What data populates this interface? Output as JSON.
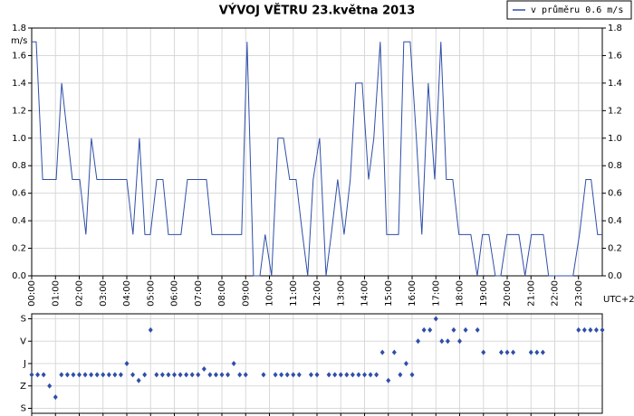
{
  "chart_data": [
    {
      "type": "line",
      "title": "VÝVOJ VĚTRU  23.května 2013",
      "ylabel": "m/s",
      "xlabel": "UTC+2",
      "legend": "top-right",
      "grid": true,
      "xlim": [
        0,
        24
      ],
      "xticks": [
        {
          "value": 0,
          "label": "00:00"
        },
        {
          "value": 1,
          "label": "01:00"
        },
        {
          "value": 2,
          "label": "02:00"
        },
        {
          "value": 3,
          "label": "03:00"
        },
        {
          "value": 4,
          "label": "04:00"
        },
        {
          "value": 5,
          "label": "05:00"
        },
        {
          "value": 6,
          "label": "06:00"
        },
        {
          "value": 7,
          "label": "07:00"
        },
        {
          "value": 8,
          "label": "08:00"
        },
        {
          "value": 9,
          "label": "09:00"
        },
        {
          "value": 10,
          "label": "10:00"
        },
        {
          "value": 11,
          "label": "11:00"
        },
        {
          "value": 12,
          "label": "12:00"
        },
        {
          "value": 13,
          "label": "13:00"
        },
        {
          "value": 14,
          "label": "14:00"
        },
        {
          "value": 15,
          "label": "15:00"
        },
        {
          "value": 16,
          "label": "16:00"
        },
        {
          "value": 17,
          "label": "17:00"
        },
        {
          "value": 18,
          "label": "18:00"
        },
        {
          "value": 19,
          "label": "19:00"
        },
        {
          "value": 20,
          "label": "20:00"
        },
        {
          "value": 21,
          "label": "21:00"
        },
        {
          "value": 22,
          "label": "22:00"
        },
        {
          "value": 23,
          "label": "23:00"
        }
      ],
      "ylim": [
        0,
        1.8
      ],
      "yticks": [
        {
          "value": 0,
          "label": "0.0"
        },
        0.2,
        0.4,
        0.6,
        0.8,
        {
          "value": 1,
          "label": "1.0"
        },
        1.2,
        1.4,
        1.6,
        1.8
      ],
      "x": [
        0,
        0.19,
        0.46,
        1.03,
        1.26,
        1.71,
        2.02,
        2.28,
        2.51,
        2.74,
        4.0,
        4.26,
        4.53,
        4.76,
        4.99,
        5.26,
        5.52,
        5.75,
        6.28,
        6.55,
        7.35,
        7.58,
        8.83,
        9.06,
        9.33,
        9.6,
        9.82,
        10.09,
        10.36,
        10.59,
        10.85,
        11.12,
        11.39,
        11.61,
        11.84,
        12.11,
        12.38,
        12.6,
        12.87,
        13.14,
        13.4,
        13.63,
        13.9,
        14.17,
        14.39,
        14.66,
        14.93,
        15.43,
        15.65,
        15.92,
        16.18,
        16.41,
        16.68,
        16.95,
        17.21,
        17.44,
        17.71,
        17.97,
        18.47,
        18.74,
        18.96,
        19.23,
        19.5,
        19.73,
        19.99,
        20.49,
        20.75,
        21.02,
        21.52,
        21.74,
        22.77,
        23.04,
        23.31,
        23.53,
        23.8,
        24.0
      ],
      "series": [
        {
          "name": "v průměru 0.6 m/s",
          "color": "#2f4fa8",
          "values": [
            1.7,
            1.7,
            0.7,
            0.7,
            1.4,
            0.7,
            0.7,
            0.3,
            1.0,
            0.7,
            0.7,
            0.3,
            1.0,
            0.3,
            0.3,
            0.7,
            0.7,
            0.3,
            0.3,
            0.7,
            0.7,
            0.3,
            0.3,
            1.7,
            0.0,
            0.0,
            0.3,
            0.0,
            1.0,
            1.0,
            0.7,
            0.7,
            0.3,
            0.0,
            0.7,
            1.0,
            0.0,
            0.3,
            0.7,
            0.3,
            0.7,
            1.4,
            1.4,
            0.7,
            1.0,
            1.7,
            0.3,
            0.3,
            1.7,
            1.7,
            1.0,
            0.3,
            1.4,
            0.7,
            1.7,
            0.7,
            0.7,
            0.3,
            0.3,
            0.0,
            0.3,
            0.3,
            0.0,
            0.0,
            0.3,
            0.3,
            0.0,
            0.3,
            0.3,
            0.0,
            0.0,
            0.3,
            0.7,
            0.7,
            0.3,
            0.3
          ]
        }
      ]
    },
    {
      "type": "scatter",
      "grid": true,
      "xlim": [
        0,
        24
      ],
      "xticks": [
        0,
        1,
        2,
        3,
        4,
        5,
        6,
        7,
        8,
        9,
        10,
        11,
        12,
        13,
        14,
        15,
        16,
        17,
        18,
        19,
        20,
        21,
        22,
        23
      ],
      "ylim": [
        -20,
        380
      ],
      "yticks": [
        {
          "value": 0,
          "label": "S"
        },
        {
          "value": 90,
          "label": "Z"
        },
        {
          "value": 180,
          "label": "J"
        },
        {
          "value": 270,
          "label": "V"
        },
        {
          "value": 360,
          "label": "S"
        }
      ],
      "x": [
        0,
        0.25,
        0.5,
        0.75,
        1.0,
        1.25,
        1.5,
        1.75,
        2.0,
        2.25,
        2.5,
        2.75,
        3.0,
        3.25,
        3.5,
        3.75,
        4.0,
        4.25,
        4.5,
        4.75,
        5.0,
        5.25,
        5.5,
        5.75,
        6.0,
        6.25,
        6.5,
        6.75,
        7.0,
        7.25,
        7.5,
        7.75,
        8.0,
        8.25,
        8.5,
        8.75,
        9.0,
        9.75,
        10.25,
        10.5,
        10.75,
        11.0,
        11.25,
        11.75,
        12.0,
        12.5,
        12.75,
        13.0,
        13.25,
        13.5,
        13.75,
        14.0,
        14.25,
        14.5,
        14.75,
        15.0,
        15.25,
        15.5,
        15.75,
        16.0,
        16.25,
        16.5,
        16.75,
        17.0,
        17.25,
        17.5,
        17.75,
        18.0,
        18.25,
        18.75,
        19.0,
        19.75,
        20.0,
        20.25,
        21.0,
        21.25,
        21.5,
        23.0,
        23.25,
        23.5,
        23.75,
        24.0
      ],
      "series": [
        {
          "color": "#2f4fa8",
          "values": [
            135,
            135,
            135,
            90,
            45,
            135,
            135,
            135,
            135,
            135,
            135,
            135,
            135,
            135,
            135,
            135,
            180,
            135,
            112,
            135,
            315,
            135,
            135,
            135,
            135,
            135,
            135,
            135,
            135,
            158,
            135,
            135,
            135,
            135,
            180,
            135,
            135,
            135,
            135,
            135,
            135,
            135,
            135,
            135,
            135,
            135,
            135,
            135,
            135,
            135,
            135,
            135,
            135,
            135,
            225,
            112,
            225,
            135,
            180,
            135,
            270,
            315,
            315,
            360,
            270,
            270,
            315,
            270,
            315,
            315,
            225,
            225,
            225,
            225,
            225,
            225,
            225,
            315,
            315,
            315,
            315,
            315
          ]
        }
      ]
    }
  ]
}
